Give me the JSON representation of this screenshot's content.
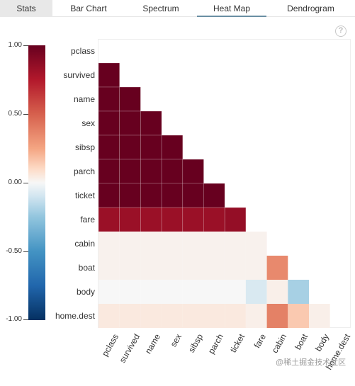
{
  "tabs": [
    {
      "label": "Stats",
      "active": false
    },
    {
      "label": "Bar Chart",
      "active": false
    },
    {
      "label": "Spectrum",
      "active": false
    },
    {
      "label": "Heat Map",
      "active": true
    },
    {
      "label": "Dendrogram",
      "active": false
    }
  ],
  "help_icon": {
    "glyph": "?",
    "name": "help-icon"
  },
  "colorbar": {
    "ticks": [
      "1.00",
      "0.50",
      "0.00",
      "-0.50",
      "-1.00"
    ],
    "colormap": "RdBu"
  },
  "watermark": "@稀土掘金技术社区",
  "chart_data": {
    "type": "heatmap",
    "title": "",
    "rows": [
      "pclass",
      "survived",
      "name",
      "sex",
      "sibsp",
      "parch",
      "ticket",
      "fare",
      "cabin",
      "boat",
      "body",
      "home.dest"
    ],
    "columns": [
      "pclass",
      "survived",
      "name",
      "sex",
      "sibsp",
      "parch",
      "ticket",
      "fare",
      "cabin",
      "boat",
      "body",
      "home.dest"
    ],
    "vmin": -1.0,
    "vmax": 1.0,
    "mask": "upper-triangle-and-diagonal",
    "values": [
      [
        null,
        null,
        null,
        null,
        null,
        null,
        null,
        null,
        null,
        null,
        null,
        null
      ],
      [
        1.0,
        null,
        null,
        null,
        null,
        null,
        null,
        null,
        null,
        null,
        null,
        null
      ],
      [
        1.0,
        1.0,
        null,
        null,
        null,
        null,
        null,
        null,
        null,
        null,
        null,
        null
      ],
      [
        1.0,
        1.0,
        1.0,
        null,
        null,
        null,
        null,
        null,
        null,
        null,
        null,
        null
      ],
      [
        1.0,
        1.0,
        1.0,
        1.0,
        null,
        null,
        null,
        null,
        null,
        null,
        null,
        null
      ],
      [
        1.0,
        1.0,
        1.0,
        1.0,
        1.0,
        null,
        null,
        null,
        null,
        null,
        null,
        null
      ],
      [
        1.0,
        1.0,
        1.0,
        1.0,
        1.0,
        1.0,
        null,
        null,
        null,
        null,
        null,
        null
      ],
      [
        0.83,
        0.83,
        0.83,
        0.83,
        0.83,
        0.83,
        0.85,
        null,
        null,
        null,
        null,
        null
      ],
      [
        0.02,
        0.02,
        0.02,
        0.02,
        0.02,
        0.02,
        0.02,
        0.02,
        null,
        null,
        null,
        null
      ],
      [
        0.02,
        0.02,
        0.02,
        0.02,
        0.02,
        0.02,
        0.02,
        0.02,
        0.35,
        null,
        null,
        null
      ],
      [
        0.0,
        0.0,
        0.0,
        0.0,
        0.0,
        0.0,
        0.0,
        -0.08,
        0.03,
        -0.2,
        null,
        null
      ],
      [
        0.05,
        0.05,
        0.05,
        0.05,
        0.05,
        0.05,
        0.05,
        0.03,
        0.38,
        0.15,
        0.03,
        null
      ]
    ]
  }
}
